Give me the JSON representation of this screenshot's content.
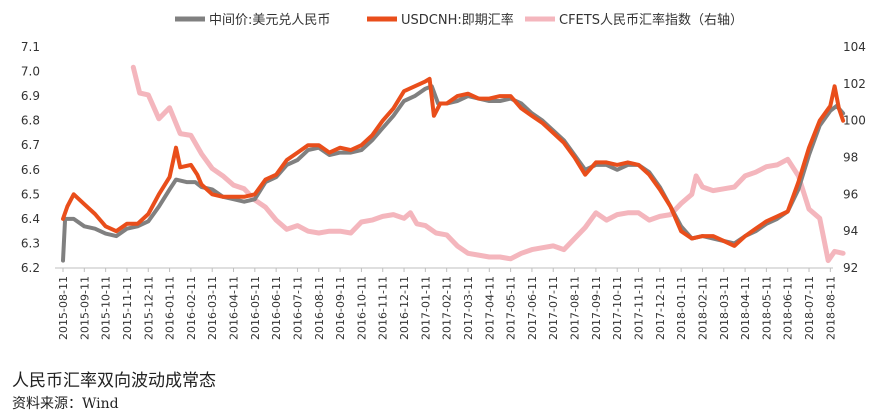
{
  "chart_data": {
    "type": "line",
    "title": "",
    "xlabel": "",
    "ylabel": "",
    "y_left_ticks": [
      "7.1",
      "7.0",
      "6.9",
      "6.8",
      "6.7",
      "6.6",
      "6.5",
      "6.4",
      "6.3",
      "6.2"
    ],
    "y_right_ticks": [
      "104",
      "102",
      "100",
      "98",
      "96",
      "94",
      "92"
    ],
    "ylim_left": [
      6.2,
      7.1
    ],
    "ylim_right": [
      92,
      104
    ],
    "x_start": "2015-08",
    "x_end": "2018-08",
    "x_ticks": [
      "2015-08-11",
      "2015-09-11",
      "2015-10-11",
      "2015-11-11",
      "2015-12-11",
      "2016-01-11",
      "2016-02-11",
      "2016-03-11",
      "2016-04-11",
      "2016-05-11",
      "2016-06-11",
      "2016-07-11",
      "2016-08-11",
      "2016-09-11",
      "2016-10-11",
      "2016-11-11",
      "2016-12-11",
      "2017-01-11",
      "2017-02-11",
      "2017-03-11",
      "2017-04-11",
      "2017-05-11",
      "2017-06-11",
      "2017-07-11",
      "2017-08-11",
      "2017-09-11",
      "2017-10-11",
      "2017-11-11",
      "2017-12-11",
      "2018-01-11",
      "2018-02-11",
      "2018-03-11",
      "2018-04-11",
      "2018-05-11",
      "2018-06-11",
      "2018-07-11",
      "2018-08-11"
    ],
    "legend_position": "top",
    "series": [
      {
        "name": "中间价:美元兑人民币",
        "color": "#808080",
        "axis": "left",
        "points": [
          [
            0,
            6.23
          ],
          [
            0.1,
            6.4
          ],
          [
            0.5,
            6.4
          ],
          [
            1,
            6.37
          ],
          [
            1.5,
            6.36
          ],
          [
            2,
            6.34
          ],
          [
            2.5,
            6.33
          ],
          [
            3,
            6.36
          ],
          [
            3.5,
            6.37
          ],
          [
            4,
            6.39
          ],
          [
            4.5,
            6.45
          ],
          [
            5,
            6.52
          ],
          [
            5.3,
            6.56
          ],
          [
            5.8,
            6.55
          ],
          [
            6.2,
            6.55
          ],
          [
            6.5,
            6.53
          ],
          [
            7,
            6.52
          ],
          [
            7.5,
            6.49
          ],
          [
            8,
            6.48
          ],
          [
            8.5,
            6.47
          ],
          [
            9,
            6.48
          ],
          [
            9.5,
            6.55
          ],
          [
            10,
            6.57
          ],
          [
            10.5,
            6.62
          ],
          [
            11,
            6.64
          ],
          [
            11.5,
            6.68
          ],
          [
            12,
            6.69
          ],
          [
            12.5,
            6.66
          ],
          [
            13,
            6.67
          ],
          [
            13.5,
            6.67
          ],
          [
            14,
            6.68
          ],
          [
            14.5,
            6.72
          ],
          [
            15,
            6.77
          ],
          [
            15.5,
            6.82
          ],
          [
            16,
            6.88
          ],
          [
            16.5,
            6.9
          ],
          [
            17,
            6.93
          ],
          [
            17.3,
            6.94
          ],
          [
            17.6,
            6.87
          ],
          [
            18,
            6.87
          ],
          [
            18.5,
            6.88
          ],
          [
            19,
            6.9
          ],
          [
            19.5,
            6.89
          ],
          [
            20,
            6.88
          ],
          [
            20.5,
            6.88
          ],
          [
            21,
            6.89
          ],
          [
            21.5,
            6.87
          ],
          [
            22,
            6.83
          ],
          [
            22.5,
            6.8
          ],
          [
            23,
            6.76
          ],
          [
            23.5,
            6.72
          ],
          [
            24,
            6.66
          ],
          [
            24.5,
            6.6
          ],
          [
            25,
            6.62
          ],
          [
            25.5,
            6.62
          ],
          [
            26,
            6.6
          ],
          [
            26.5,
            6.62
          ],
          [
            27,
            6.62
          ],
          [
            27.5,
            6.59
          ],
          [
            28,
            6.53
          ],
          [
            28.5,
            6.45
          ],
          [
            29,
            6.37
          ],
          [
            29.5,
            6.32
          ],
          [
            30,
            6.33
          ],
          [
            30.5,
            6.32
          ],
          [
            31,
            6.31
          ],
          [
            31.5,
            6.3
          ],
          [
            32,
            6.33
          ],
          [
            32.5,
            6.35
          ],
          [
            33,
            6.38
          ],
          [
            33.5,
            6.4
          ],
          [
            34,
            6.43
          ],
          [
            34.5,
            6.52
          ],
          [
            35,
            6.66
          ],
          [
            35.5,
            6.78
          ],
          [
            36,
            6.84
          ],
          [
            36.3,
            6.86
          ],
          [
            36.6,
            6.83
          ]
        ]
      },
      {
        "name": "USDCNH:即期汇率",
        "color": "#e94e1b",
        "axis": "left",
        "points": [
          [
            0,
            6.4
          ],
          [
            0.2,
            6.45
          ],
          [
            0.5,
            6.5
          ],
          [
            1,
            6.46
          ],
          [
            1.5,
            6.42
          ],
          [
            2,
            6.37
          ],
          [
            2.5,
            6.35
          ],
          [
            3,
            6.38
          ],
          [
            3.5,
            6.38
          ],
          [
            4,
            6.42
          ],
          [
            4.5,
            6.5
          ],
          [
            5,
            6.57
          ],
          [
            5.3,
            6.69
          ],
          [
            5.5,
            6.61
          ],
          [
            6,
            6.62
          ],
          [
            6.3,
            6.58
          ],
          [
            6.5,
            6.54
          ],
          [
            7,
            6.5
          ],
          [
            7.5,
            6.49
          ],
          [
            8,
            6.49
          ],
          [
            8.5,
            6.49
          ],
          [
            9,
            6.5
          ],
          [
            9.5,
            6.56
          ],
          [
            10,
            6.58
          ],
          [
            10.5,
            6.64
          ],
          [
            11,
            6.67
          ],
          [
            11.5,
            6.7
          ],
          [
            12,
            6.7
          ],
          [
            12.5,
            6.67
          ],
          [
            13,
            6.69
          ],
          [
            13.5,
            6.68
          ],
          [
            14,
            6.7
          ],
          [
            14.5,
            6.74
          ],
          [
            15,
            6.8
          ],
          [
            15.5,
            6.85
          ],
          [
            16,
            6.92
          ],
          [
            16.5,
            6.94
          ],
          [
            17,
            6.96
          ],
          [
            17.2,
            6.97
          ],
          [
            17.4,
            6.82
          ],
          [
            17.7,
            6.87
          ],
          [
            18,
            6.87
          ],
          [
            18.5,
            6.9
          ],
          [
            19,
            6.91
          ],
          [
            19.5,
            6.89
          ],
          [
            20,
            6.89
          ],
          [
            20.5,
            6.9
          ],
          [
            21,
            6.9
          ],
          [
            21.5,
            6.85
          ],
          [
            22,
            6.82
          ],
          [
            22.5,
            6.79
          ],
          [
            23,
            6.75
          ],
          [
            23.5,
            6.71
          ],
          [
            24,
            6.65
          ],
          [
            24.5,
            6.58
          ],
          [
            25,
            6.63
          ],
          [
            25.5,
            6.63
          ],
          [
            26,
            6.62
          ],
          [
            26.5,
            6.63
          ],
          [
            27,
            6.62
          ],
          [
            27.5,
            6.58
          ],
          [
            28,
            6.52
          ],
          [
            28.5,
            6.45
          ],
          [
            29,
            6.35
          ],
          [
            29.5,
            6.32
          ],
          [
            30,
            6.33
          ],
          [
            30.5,
            6.33
          ],
          [
            31,
            6.31
          ],
          [
            31.5,
            6.29
          ],
          [
            32,
            6.33
          ],
          [
            32.5,
            6.36
          ],
          [
            33,
            6.39
          ],
          [
            33.5,
            6.41
          ],
          [
            34,
            6.43
          ],
          [
            34.5,
            6.55
          ],
          [
            35,
            6.69
          ],
          [
            35.5,
            6.8
          ],
          [
            36,
            6.86
          ],
          [
            36.2,
            6.94
          ],
          [
            36.4,
            6.85
          ],
          [
            36.6,
            6.8
          ]
        ]
      },
      {
        "name": "CFETS人民币汇率指数（右轴）",
        "color": "#f4b6bd",
        "axis": "right",
        "points": [
          [
            3.3,
            102.9
          ],
          [
            3.6,
            101.5
          ],
          [
            4,
            101.4
          ],
          [
            4.5,
            100.1
          ],
          [
            5,
            100.7
          ],
          [
            5.5,
            99.3
          ],
          [
            6,
            99.2
          ],
          [
            6.5,
            98.2
          ],
          [
            7,
            97.4
          ],
          [
            7.5,
            97.0
          ],
          [
            8,
            96.5
          ],
          [
            8.5,
            96.3
          ],
          [
            9,
            95.7
          ],
          [
            9.5,
            95.3
          ],
          [
            10,
            94.6
          ],
          [
            10.5,
            94.1
          ],
          [
            11,
            94.3
          ],
          [
            11.5,
            94.0
          ],
          [
            12,
            93.9
          ],
          [
            12.5,
            94.0
          ],
          [
            13,
            94.0
          ],
          [
            13.5,
            93.9
          ],
          [
            14,
            94.5
          ],
          [
            14.5,
            94.6
          ],
          [
            15,
            94.8
          ],
          [
            15.5,
            94.9
          ],
          [
            16,
            94.7
          ],
          [
            16.3,
            95.0
          ],
          [
            16.6,
            94.4
          ],
          [
            17,
            94.3
          ],
          [
            17.5,
            93.9
          ],
          [
            18,
            93.8
          ],
          [
            18.5,
            93.2
          ],
          [
            19,
            92.8
          ],
          [
            19.5,
            92.7
          ],
          [
            20,
            92.6
          ],
          [
            20.5,
            92.6
          ],
          [
            21,
            92.5
          ],
          [
            21.5,
            92.8
          ],
          [
            22,
            93.0
          ],
          [
            22.5,
            93.1
          ],
          [
            23,
            93.2
          ],
          [
            23.5,
            93.0
          ],
          [
            24,
            93.6
          ],
          [
            24.5,
            94.2
          ],
          [
            25,
            95.0
          ],
          [
            25.5,
            94.6
          ],
          [
            26,
            94.9
          ],
          [
            26.5,
            95.0
          ],
          [
            27,
            95.0
          ],
          [
            27.5,
            94.6
          ],
          [
            28,
            94.8
          ],
          [
            28.5,
            94.9
          ],
          [
            29,
            95.5
          ],
          [
            29.5,
            96.0
          ],
          [
            29.7,
            97.0
          ],
          [
            30,
            96.4
          ],
          [
            30.5,
            96.2
          ],
          [
            31,
            96.3
          ],
          [
            31.5,
            96.4
          ],
          [
            32,
            97.0
          ],
          [
            32.5,
            97.2
          ],
          [
            33,
            97.5
          ],
          [
            33.5,
            97.6
          ],
          [
            34,
            97.9
          ],
          [
            34.5,
            97.0
          ],
          [
            35,
            95.2
          ],
          [
            35.5,
            94.7
          ],
          [
            35.9,
            92.4
          ],
          [
            36.2,
            92.9
          ],
          [
            36.6,
            92.8
          ]
        ]
      }
    ]
  },
  "caption": "人民币汇率双向波动成常态",
  "source": "资料来源：Wind"
}
